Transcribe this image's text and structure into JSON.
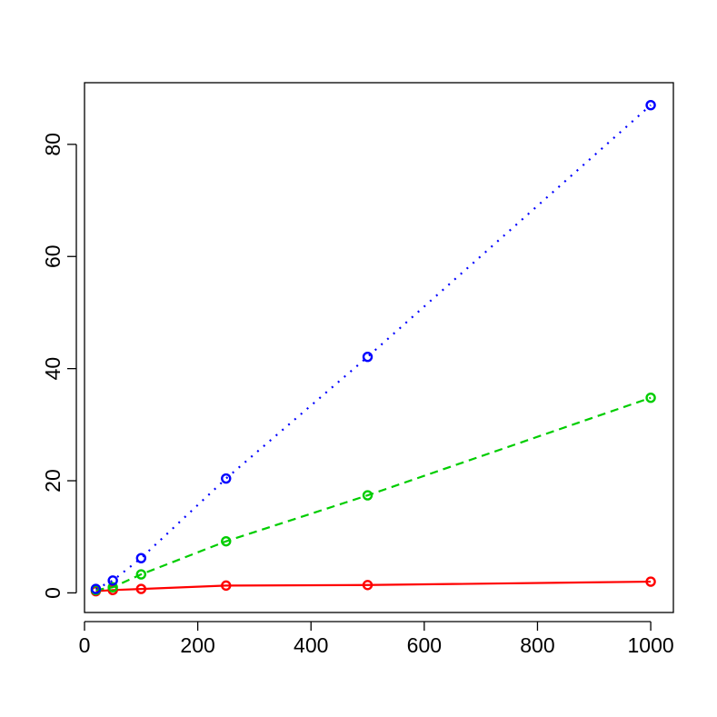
{
  "chart_data": {
    "type": "line",
    "title": "",
    "xlabel": "",
    "ylabel": "",
    "xlim": [
      0,
      1040
    ],
    "ylim": [
      -3.5,
      91
    ],
    "x_ticks": [
      0,
      200,
      400,
      600,
      800,
      1000
    ],
    "y_ticks": [
      0,
      20,
      40,
      60,
      80
    ],
    "x_tick_labels": [
      "0",
      "200",
      "400",
      "600",
      "800",
      "1000"
    ],
    "y_tick_labels": [
      "0",
      "20",
      "40",
      "60",
      "80"
    ],
    "grid": false,
    "legend": "none",
    "x": [
      20,
      50,
      100,
      250,
      500,
      1000
    ],
    "series": [
      {
        "color": "#ff0000",
        "line_style": "solid",
        "marker": "open-circle",
        "values": [
          0.3,
          0.5,
          0.7,
          1.3,
          1.4,
          2.0
        ]
      },
      {
        "color": "#00cd00",
        "line_style": "dashed",
        "marker": "open-circle",
        "values": [
          0.5,
          1.0,
          3.3,
          9.2,
          17.4,
          34.8
        ]
      },
      {
        "color": "#0000ff",
        "line_style": "dotted",
        "marker": "open-circle",
        "values": [
          0.7,
          2.2,
          6.2,
          20.4,
          42.1,
          87.0
        ]
      }
    ]
  }
}
